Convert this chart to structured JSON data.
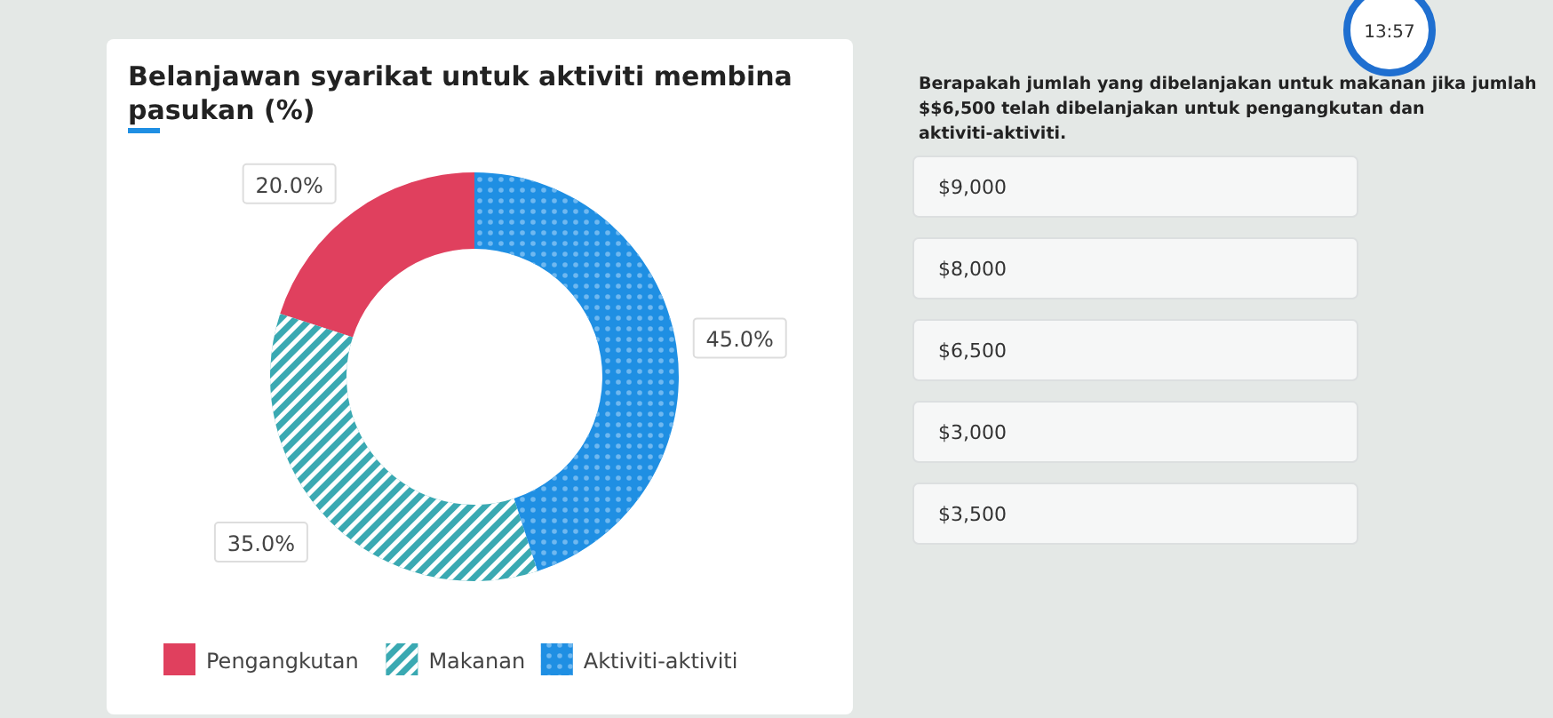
{
  "chart_data": [
    {
      "type": "donut",
      "title": "Belanjawan syarikat untuk aktiviti membina pasukan (%)",
      "categories": [
        "Pengangkutan",
        "Makanan",
        "Aktiviti-aktiviti"
      ],
      "values": [
        20,
        35,
        45
      ],
      "colors": [
        "#e0405e",
        "#3aa9b2",
        "#1f8fe3"
      ],
      "value_labels": [
        "20.0%",
        "35.0%",
        "45.0%"
      ],
      "legend": "bottom"
    },
    {
      "type": "other",
      "title": "Berapakah jumlah yang dibelanjakan untuk makanan jika jumlah $$6,500 telah dibelanjakan untuk pengangkutan dan aktiviti-aktiviti.",
      "annotations": [
        "$9,000",
        "$8,000",
        "$6,500",
        "$3,000",
        "$3,500",
        "13:57"
      ]
    }
  ]
}
